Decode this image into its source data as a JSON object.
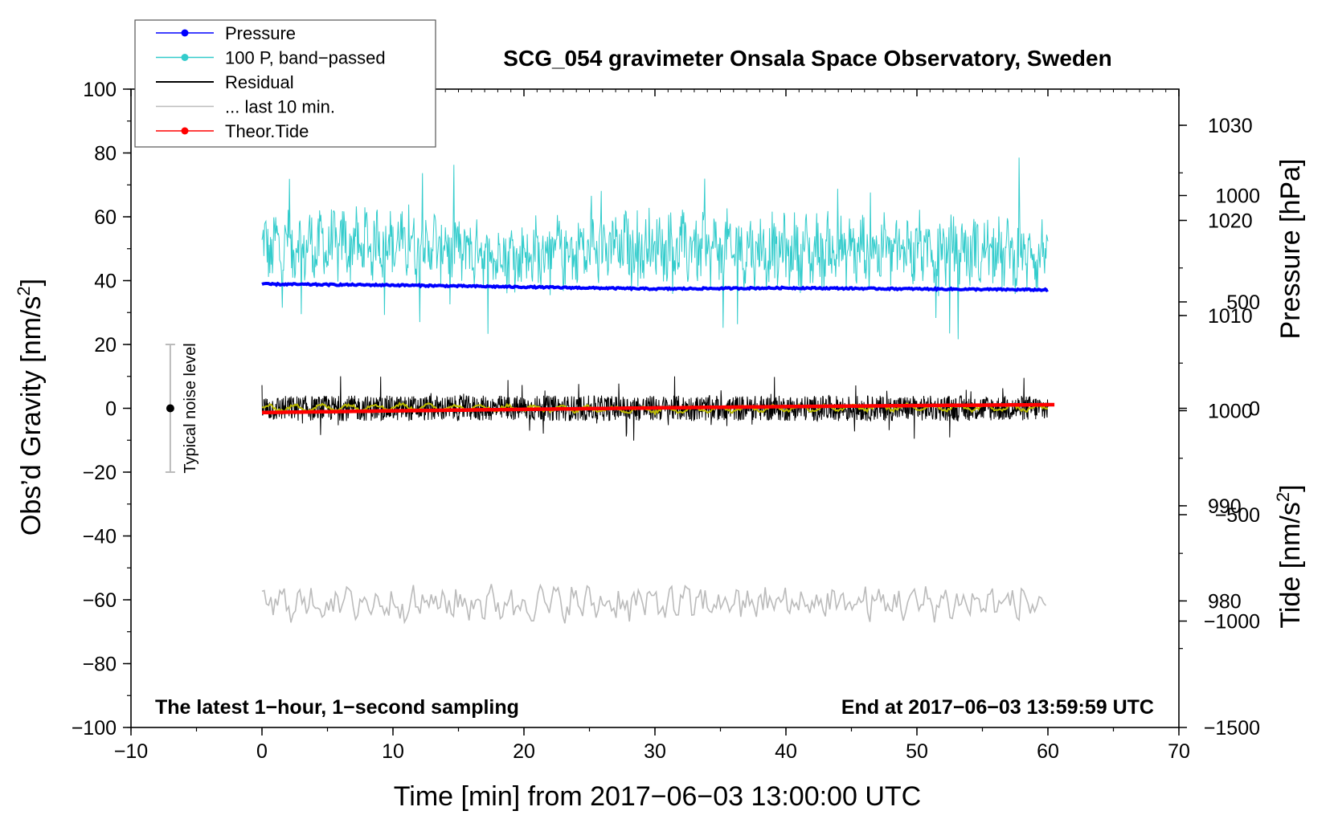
{
  "chart_data": {
    "type": "line",
    "title": "SCG_054 gravimeter Onsala Space Observatory, Sweden",
    "xlabel": "Time [min] from 2017−06−03 13:00:00 UTC",
    "ylabel_main": "Obs’d Gravity [nm/s",
    "ylabel_pressure": "Pressure [hPa]",
    "ylabel_tide": "Tide [nm/s",
    "superscript": "2",
    "ylabel_close": "]",
    "xlim": [
      -10,
      70
    ],
    "ylim": [
      -100,
      100
    ],
    "pressure_lim": [
      966.7,
      1033.8
    ],
    "tide_lim": [
      -1500,
      1500
    ],
    "x_ticks": [
      "−10",
      "0",
      "10",
      "20",
      "30",
      "40",
      "50",
      "60",
      "70"
    ],
    "y_ticks": [
      "−100",
      "−80",
      "−60",
      "−40",
      "−20",
      "0",
      "20",
      "40",
      "60",
      "80",
      "100"
    ],
    "pressure_ticks": [
      "980",
      "990",
      "1000",
      "1010",
      "1020",
      "1030"
    ],
    "tide_ticks": [
      "−1500",
      "−1000",
      "−500",
      "0",
      "500",
      "1000"
    ],
    "annotations": {
      "left": "The latest 1−hour, 1−second sampling",
      "right": "End at 2017−06−03 13:59:59 UTC",
      "noise": "Typical noise level"
    },
    "noise_bar": {
      "x": -7,
      "center": 0,
      "low": -20,
      "high": 20
    },
    "legend": [
      {
        "label": "Pressure",
        "color": "#0000ff",
        "marker": true
      },
      {
        "label": "100 P, band−passed",
        "color": "#33cccc",
        "marker": true
      },
      {
        "label": "Residual",
        "color": "#000000",
        "marker": false
      },
      {
        "label": "... last 10 min.",
        "color": "#bbbbbb",
        "marker": false
      },
      {
        "label": "Theor.Tide",
        "color": "#ff0000",
        "marker": true
      }
    ],
    "series": [
      {
        "name": "Pressure",
        "axis": "pressure",
        "color": "#0000ff",
        "x": [
          0,
          10,
          20,
          30,
          40,
          50,
          60
        ],
        "values": [
          1013.3,
          1013.2,
          1013.0,
          1012.8,
          1012.9,
          1012.8,
          1012.7
        ]
      },
      {
        "name": "100 P, band−passed",
        "axis": "gravity",
        "color": "#33cccc",
        "x": [
          0,
          10,
          20,
          30,
          40,
          50,
          60
        ],
        "values": [
          50,
          52,
          48,
          51,
          49,
          50,
          48
        ],
        "amplitude": 10
      },
      {
        "name": "Residual",
        "axis": "gravity",
        "color": "#000000",
        "x": [
          0,
          10,
          20,
          30,
          40,
          50,
          60
        ],
        "values": [
          0,
          0,
          0,
          0,
          0,
          0,
          0
        ],
        "amplitude": 4
      },
      {
        "name": "Smoothed residual",
        "axis": "gravity",
        "color": "#bbbb00",
        "x": [
          0,
          10,
          20,
          30,
          40,
          50,
          60
        ],
        "values": [
          0,
          0.5,
          0,
          -0.5,
          0,
          0.3,
          0
        ],
        "amplitude": 0.8
      },
      {
        "name": "... last 10 min.",
        "axis": "gravity",
        "color": "#bbbbbb",
        "x": [
          0,
          10,
          20,
          30,
          40,
          50,
          60
        ],
        "values": [
          -61,
          -61,
          -61,
          -61,
          -61,
          -61,
          -61
        ],
        "amplitude": 4
      },
      {
        "name": "Theor.Tide",
        "axis": "tide",
        "color": "#ff0000",
        "x": [
          0,
          10,
          20,
          30,
          40,
          50,
          60.5
        ],
        "values": [
          -20,
          -12,
          -5,
          2,
          8,
          13,
          17
        ]
      }
    ]
  }
}
